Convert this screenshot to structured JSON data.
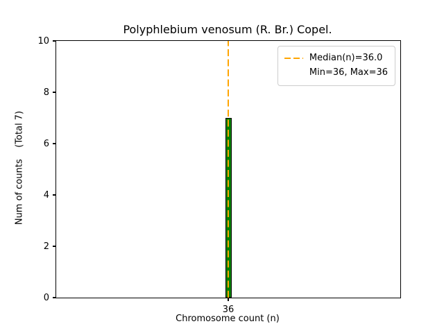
{
  "chart_data": {
    "type": "bar",
    "title": "Polyphlebium venosum (R. Br.) Copel.",
    "xlabel": "Chromosome count (n)",
    "ylabel": "Num of counts    (Total 7)",
    "categories": [
      "36"
    ],
    "values": [
      7
    ],
    "total_counts": 7,
    "ylim": [
      0,
      10
    ],
    "yticks": [
      0,
      2,
      4,
      6,
      8,
      10
    ],
    "xticks": [
      "36"
    ],
    "median": "36.0",
    "min": "36",
    "max": "36",
    "bar_color": "#008000",
    "bar_edge_color": "#000000",
    "median_line_color": "#FFA500",
    "grid": false,
    "legend_position": "upper right"
  },
  "legend": {
    "items": [
      {
        "label": "Median(n)=36.0",
        "swatch": "dashed-orange-line"
      },
      {
        "label": "Min=36, Max=36",
        "swatch": "none"
      }
    ]
  }
}
